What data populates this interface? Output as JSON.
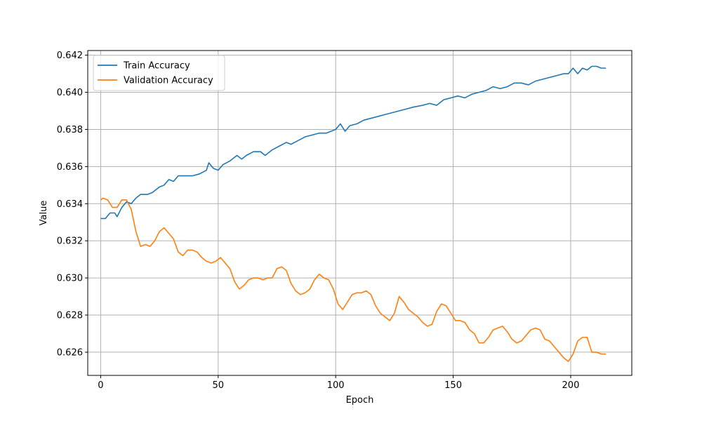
{
  "chart_data": {
    "type": "line",
    "title": "",
    "xlabel": "Epoch",
    "ylabel": "Value",
    "xlim": [
      -5.5,
      226
    ],
    "ylim": [
      0.62475,
      0.64225
    ],
    "xticks": [
      0,
      50,
      100,
      150,
      200
    ],
    "yticks": [
      0.626,
      0.628,
      0.63,
      0.632,
      0.634,
      0.636,
      0.638,
      0.64,
      0.642
    ],
    "xtick_labels": [
      "0",
      "50",
      "100",
      "150",
      "200"
    ],
    "ytick_labels": [
      "0.626",
      "0.628",
      "0.630",
      "0.632",
      "0.634",
      "0.636",
      "0.638",
      "0.640",
      "0.642"
    ],
    "grid": true,
    "legend_position": "top-left",
    "series": [
      {
        "name": "Train Accuracy",
        "color": "#1f77b4",
        "points": [
          [
            0,
            0.6332
          ],
          [
            2,
            0.6332
          ],
          [
            4,
            0.6335
          ],
          [
            6,
            0.6335
          ],
          [
            7,
            0.6333
          ],
          [
            9,
            0.6338
          ],
          [
            11,
            0.6341
          ],
          [
            13,
            0.634
          ],
          [
            15,
            0.6343
          ],
          [
            17,
            0.6345
          ],
          [
            20,
            0.6345
          ],
          [
            22,
            0.6346
          ],
          [
            25,
            0.6349
          ],
          [
            27,
            0.635
          ],
          [
            29,
            0.6353
          ],
          [
            31,
            0.6352
          ],
          [
            33,
            0.6355
          ],
          [
            36,
            0.6355
          ],
          [
            39,
            0.6355
          ],
          [
            42,
            0.6356
          ],
          [
            45,
            0.6358
          ],
          [
            46,
            0.6362
          ],
          [
            48,
            0.6359
          ],
          [
            50,
            0.6358
          ],
          [
            52,
            0.6361
          ],
          [
            55,
            0.6363
          ],
          [
            58,
            0.6366
          ],
          [
            60,
            0.6364
          ],
          [
            62,
            0.6366
          ],
          [
            65,
            0.6368
          ],
          [
            68,
            0.6368
          ],
          [
            70,
            0.6366
          ],
          [
            73,
            0.6369
          ],
          [
            76,
            0.6371
          ],
          [
            79,
            0.6373
          ],
          [
            81,
            0.6372
          ],
          [
            84,
            0.6374
          ],
          [
            87,
            0.6376
          ],
          [
            90,
            0.6377
          ],
          [
            93,
            0.6378
          ],
          [
            96,
            0.6378
          ],
          [
            100,
            0.638
          ],
          [
            102,
            0.6383
          ],
          [
            104,
            0.6379
          ],
          [
            106,
            0.6382
          ],
          [
            109,
            0.6383
          ],
          [
            112,
            0.6385
          ],
          [
            115,
            0.6386
          ],
          [
            118,
            0.6387
          ],
          [
            121,
            0.6388
          ],
          [
            124,
            0.6389
          ],
          [
            127,
            0.639
          ],
          [
            130,
            0.6391
          ],
          [
            133,
            0.6392
          ],
          [
            137,
            0.6393
          ],
          [
            140,
            0.6394
          ],
          [
            143,
            0.6393
          ],
          [
            146,
            0.6396
          ],
          [
            149,
            0.6397
          ],
          [
            152,
            0.6398
          ],
          [
            155,
            0.6397
          ],
          [
            158,
            0.6399
          ],
          [
            161,
            0.64
          ],
          [
            164,
            0.6401
          ],
          [
            167,
            0.6403
          ],
          [
            170,
            0.6402
          ],
          [
            173,
            0.6403
          ],
          [
            176,
            0.6405
          ],
          [
            179,
            0.6405
          ],
          [
            182,
            0.6404
          ],
          [
            185,
            0.6406
          ],
          [
            188,
            0.6407
          ],
          [
            191,
            0.6408
          ],
          [
            194,
            0.6409
          ],
          [
            197,
            0.641
          ],
          [
            199,
            0.641
          ],
          [
            201,
            0.6413
          ],
          [
            203,
            0.641
          ],
          [
            205,
            0.6413
          ],
          [
            207,
            0.6412
          ],
          [
            209,
            0.6414
          ],
          [
            211,
            0.6414
          ],
          [
            213,
            0.6413
          ],
          [
            215,
            0.6413
          ]
        ]
      },
      {
        "name": "Validation Accuracy",
        "color": "#ff7f0e",
        "points": [
          [
            0,
            0.6342
          ],
          [
            1,
            0.6343
          ],
          [
            3,
            0.6342
          ],
          [
            5,
            0.6338
          ],
          [
            7,
            0.6338
          ],
          [
            9,
            0.6342
          ],
          [
            11,
            0.6342
          ],
          [
            13,
            0.6337
          ],
          [
            15,
            0.6325
          ],
          [
            17,
            0.6317
          ],
          [
            19,
            0.6318
          ],
          [
            21,
            0.6317
          ],
          [
            23,
            0.632
          ],
          [
            25,
            0.6325
          ],
          [
            27,
            0.6327
          ],
          [
            29,
            0.6324
          ],
          [
            31,
            0.6321
          ],
          [
            33,
            0.6314
          ],
          [
            35,
            0.6312
          ],
          [
            37,
            0.6315
          ],
          [
            39,
            0.6315
          ],
          [
            41,
            0.6314
          ],
          [
            43,
            0.6311
          ],
          [
            45,
            0.6309
          ],
          [
            47,
            0.6308
          ],
          [
            49,
            0.6309
          ],
          [
            51,
            0.6311
          ],
          [
            53,
            0.6308
          ],
          [
            55,
            0.6305
          ],
          [
            57,
            0.6298
          ],
          [
            59,
            0.6294
          ],
          [
            61,
            0.6296
          ],
          [
            63,
            0.6299
          ],
          [
            65,
            0.63
          ],
          [
            67,
            0.63
          ],
          [
            69,
            0.6299
          ],
          [
            71,
            0.63
          ],
          [
            73,
            0.63
          ],
          [
            75,
            0.6305
          ],
          [
            77,
            0.6306
          ],
          [
            79,
            0.6304
          ],
          [
            81,
            0.6297
          ],
          [
            83,
            0.6293
          ],
          [
            85,
            0.6291
          ],
          [
            87,
            0.6292
          ],
          [
            89,
            0.6294
          ],
          [
            91,
            0.6299
          ],
          [
            93,
            0.6302
          ],
          [
            95,
            0.63
          ],
          [
            97,
            0.6299
          ],
          [
            99,
            0.6294
          ],
          [
            101,
            0.6286
          ],
          [
            103,
            0.6283
          ],
          [
            105,
            0.6287
          ],
          [
            107,
            0.6291
          ],
          [
            109,
            0.6292
          ],
          [
            111,
            0.6292
          ],
          [
            113,
            0.6293
          ],
          [
            115,
            0.6291
          ],
          [
            117,
            0.6285
          ],
          [
            119,
            0.6281
          ],
          [
            121,
            0.6279
          ],
          [
            123,
            0.6277
          ],
          [
            125,
            0.6281
          ],
          [
            127,
            0.629
          ],
          [
            129,
            0.6287
          ],
          [
            131,
            0.6283
          ],
          [
            133,
            0.6281
          ],
          [
            135,
            0.6279
          ],
          [
            137,
            0.6276
          ],
          [
            139,
            0.6274
          ],
          [
            141,
            0.6275
          ],
          [
            143,
            0.6282
          ],
          [
            145,
            0.6286
          ],
          [
            147,
            0.6285
          ],
          [
            149,
            0.6281
          ],
          [
            151,
            0.6277
          ],
          [
            153,
            0.6277
          ],
          [
            155,
            0.6276
          ],
          [
            157,
            0.6272
          ],
          [
            159,
            0.627
          ],
          [
            161,
            0.6265
          ],
          [
            163,
            0.6265
          ],
          [
            165,
            0.6268
          ],
          [
            167,
            0.6272
          ],
          [
            169,
            0.6273
          ],
          [
            171,
            0.6274
          ],
          [
            173,
            0.6271
          ],
          [
            175,
            0.6267
          ],
          [
            177,
            0.6265
          ],
          [
            179,
            0.6266
          ],
          [
            181,
            0.6269
          ],
          [
            183,
            0.6272
          ],
          [
            185,
            0.6273
          ],
          [
            187,
            0.6272
          ],
          [
            189,
            0.6267
          ],
          [
            191,
            0.6266
          ],
          [
            193,
            0.6263
          ],
          [
            195,
            0.626
          ],
          [
            197,
            0.6257
          ],
          [
            199,
            0.6255
          ],
          [
            201,
            0.6259
          ],
          [
            203,
            0.6266
          ],
          [
            205,
            0.6268
          ],
          [
            207,
            0.6268
          ],
          [
            209,
            0.626
          ],
          [
            211,
            0.626
          ],
          [
            213,
            0.6259
          ],
          [
            215,
            0.6259
          ]
        ]
      }
    ]
  }
}
